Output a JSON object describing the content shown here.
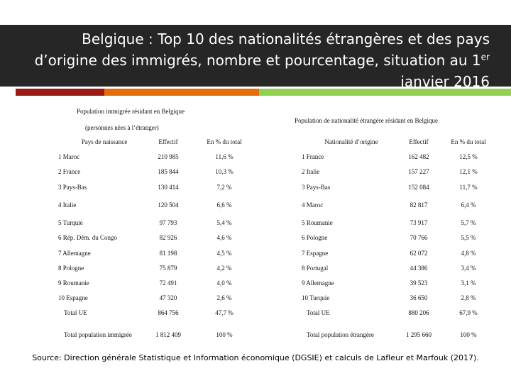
{
  "header": {
    "title_start": "Belgique : Top 10 des nationalités étrangères et des pays d’origine des immigrés, nombre et pourcentage, situation au 1",
    "title_superscript": "er",
    "title_end": " janvier 2016"
  },
  "left_table": {
    "caption": "Population immigrée résidant en Belgique",
    "subcaption": "(personnes nées à l’étranger)",
    "columns": [
      "Pays de naissance",
      "Effectif",
      "En % du total"
    ],
    "rows": [
      [
        "1 Maroc",
        "210 985",
        "11,6 %"
      ],
      [
        "2 France",
        "185 844",
        "10,3 %"
      ],
      [
        "3 Pays-Bas",
        "130 414",
        "7,2 %"
      ],
      [
        "4 Italie",
        "120 504",
        "6,6 %"
      ],
      [
        "5 Turquie",
        "97 793",
        "5,4 %"
      ],
      [
        "6 Rép. Dém. du Congo",
        "82 926",
        "4,6 %"
      ],
      [
        "7 Allemagne",
        "81 198",
        "4,5 %"
      ],
      [
        "8 Pologne",
        "75 879",
        "4,2 %"
      ],
      [
        "9 Roumanie",
        "72 491",
        "4,0 %"
      ],
      [
        "10 Espagne",
        "47 320",
        "2,6 %"
      ],
      [
        "Total UE",
        "864 756",
        "47,7 %"
      ],
      [
        "Total population immigrée",
        "1 812 409",
        "100 %"
      ]
    ]
  },
  "right_table": {
    "caption": "Population de nationalité étrangère résidant en Belgique",
    "columns": [
      "Nationalité d’origine",
      "Effectif",
      "En % du total"
    ],
    "rows": [
      [
        "1 France",
        "162 482",
        "12,5 %"
      ],
      [
        "2 Italie",
        "157 227",
        "12,1 %"
      ],
      [
        "3 Pays-Bas",
        "152 084",
        "11,7 %"
      ],
      [
        "4 Maroc",
        "82 817",
        "6,4 %"
      ],
      [
        "5 Roumanie",
        "73 917",
        "5,7 %"
      ],
      [
        "6 Pologne",
        "70 766",
        "5,5 %"
      ],
      [
        "7 Espagne",
        "62 072",
        "4,8 %"
      ],
      [
        "8 Portugal",
        "44 386",
        "3,4 %"
      ],
      [
        "9 Allemagne",
        "39 523",
        "3,1 %"
      ],
      [
        "10 Turquie",
        "36 650",
        "2,8 %"
      ],
      [
        "Total UE",
        "880 206",
        "67,9 %"
      ],
      [
        "Total population étrangère",
        "1 295 660",
        "100 %"
      ]
    ]
  },
  "source": "Source: Direction générale Statistique et Information économique (DGSIE) et calculs de Lafleur et Marfouk (2017)."
}
